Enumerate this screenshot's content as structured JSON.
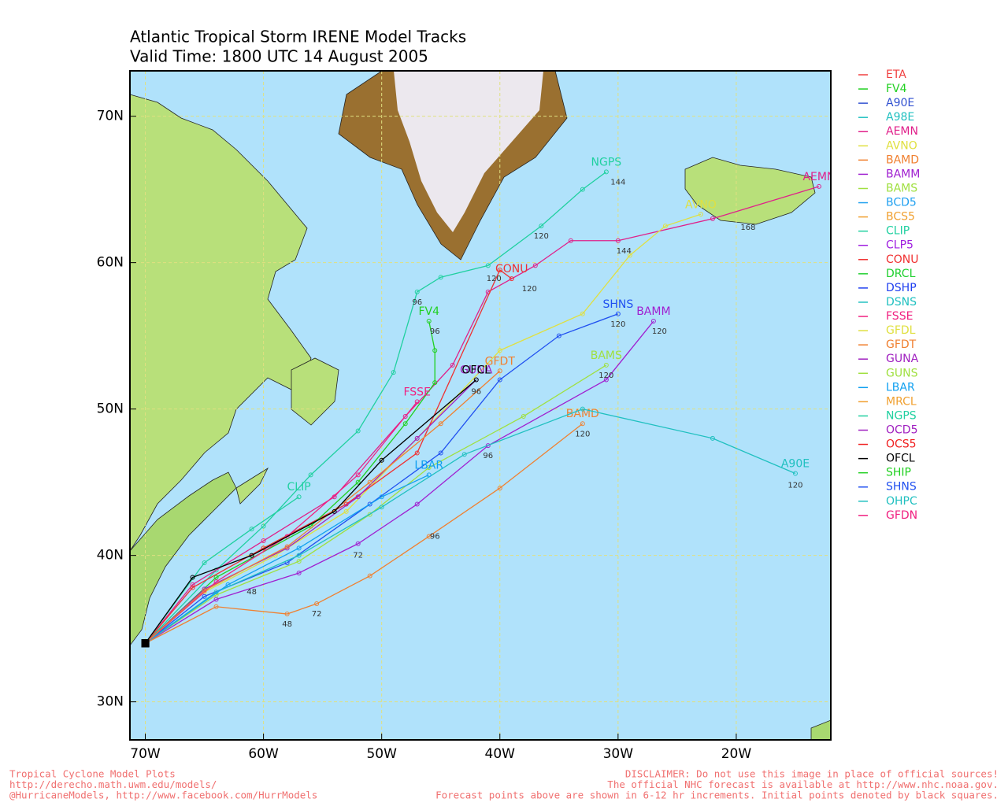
{
  "title": "Atlantic Tropical Storm IRENE Model Tracks",
  "subtitle": "Valid Time: 1800 UTC 14 August 2005",
  "map": {
    "lon_range": [
      -71.3,
      -12
    ],
    "lat_range": [
      27.4,
      73.1
    ]
  },
  "lon_ticks": [
    {
      "value": -70,
      "label": "70W"
    },
    {
      "value": -60,
      "label": "60W"
    },
    {
      "value": -50,
      "label": "50W"
    },
    {
      "value": -40,
      "label": "40W"
    },
    {
      "value": -30,
      "label": "30W"
    },
    {
      "value": -20,
      "label": "20W"
    }
  ],
  "lat_ticks": [
    {
      "value": 30,
      "label": "30N"
    },
    {
      "value": 40,
      "label": "40N"
    },
    {
      "value": 50,
      "label": "50N"
    },
    {
      "value": 60,
      "label": "60N"
    },
    {
      "value": 70,
      "label": "70N"
    }
  ],
  "legend": [
    {
      "name": "ETA",
      "color": "#f04040"
    },
    {
      "name": "FV4",
      "color": "#20d020"
    },
    {
      "name": "A90E",
      "color": "#3050d0"
    },
    {
      "name": "A98E",
      "color": "#20c0c0"
    },
    {
      "name": "AEMN",
      "color": "#e0208a"
    },
    {
      "name": "AVNO",
      "color": "#e0e040"
    },
    {
      "name": "BAMD",
      "color": "#f08030"
    },
    {
      "name": "BAMM",
      "color": "#a020d0"
    },
    {
      "name": "BAMS",
      "color": "#a0e040"
    },
    {
      "name": "BCD5",
      "color": "#20a0f0"
    },
    {
      "name": "BCS5",
      "color": "#f0a030"
    },
    {
      "name": "CLIP",
      "color": "#20d0a0"
    },
    {
      "name": "CLP5",
      "color": "#a020e0"
    },
    {
      "name": "CONU",
      "color": "#f03030"
    },
    {
      "name": "DRCL",
      "color": "#20d030"
    },
    {
      "name": "DSHP",
      "color": "#2040f0"
    },
    {
      "name": "DSNS",
      "color": "#20c0c0"
    },
    {
      "name": "FSSE",
      "color": "#f02080"
    },
    {
      "name": "GFDL",
      "color": "#e0e040"
    },
    {
      "name": "GFDT",
      "color": "#f08030"
    },
    {
      "name": "GUNA",
      "color": "#a020c0"
    },
    {
      "name": "GUNS",
      "color": "#a0e040"
    },
    {
      "name": "LBAR",
      "color": "#10a0f0"
    },
    {
      "name": "MRCL",
      "color": "#f0a030"
    },
    {
      "name": "NGPS",
      "color": "#20d0a0"
    },
    {
      "name": "OCD5",
      "color": "#a020c0"
    },
    {
      "name": "OCS5",
      "color": "#f02020"
    },
    {
      "name": "OFCL",
      "color": "#000000"
    },
    {
      "name": "SHIP",
      "color": "#20d020"
    },
    {
      "name": "SHNS",
      "color": "#2050f0"
    },
    {
      "name": "OHPC",
      "color": "#20c0c0"
    },
    {
      "name": "GFDN",
      "color": "#f02080"
    }
  ],
  "tracks": [
    {
      "name": "NGPS",
      "color": "#20d0a0",
      "lon": [
        -70,
        -64,
        -60,
        -56,
        -52,
        -49,
        -47,
        -45,
        -41,
        -36.5,
        -33,
        -31
      ],
      "lat": [
        34,
        39,
        42,
        45.5,
        48.5,
        52.5,
        58,
        59,
        59.8,
        62.5,
        65,
        66.2
      ]
    },
    {
      "name": "AEMN",
      "color": "#e0208a",
      "lon": [
        -70,
        -66,
        -60,
        -54,
        -48,
        -44,
        -41,
        -37,
        -34,
        -30,
        -22,
        -13
      ],
      "lat": [
        34,
        38,
        41,
        44,
        49.5,
        53,
        58,
        59.8,
        61.5,
        61.5,
        63,
        65.2
      ]
    },
    {
      "name": "AVNO",
      "color": "#e0e040",
      "lon": [
        -70,
        -65,
        -59,
        -53,
        -47,
        -40,
        -33,
        -29,
        -26,
        -23
      ],
      "lat": [
        34,
        37.5,
        40,
        43,
        48,
        54,
        56.5,
        60.5,
        62.5,
        63.3
      ]
    },
    {
      "name": "CONU",
      "color": "#f03030",
      "lon": [
        -70,
        -66,
        -60,
        -53,
        -47,
        -40,
        -39
      ],
      "lat": [
        34,
        37.8,
        40.5,
        43.5,
        47,
        59.5,
        58.9
      ]
    },
    {
      "name": "SHNS",
      "color": "#2050f0",
      "lon": [
        -70,
        -65,
        -58,
        -51,
        -45,
        -40,
        -35,
        -30
      ],
      "lat": [
        34,
        37.2,
        39.5,
        43.5,
        47,
        52,
        55,
        56.5
      ]
    },
    {
      "name": "BAMM",
      "color": "#a020d0",
      "lon": [
        -70,
        -64,
        -57,
        -52,
        -47,
        -41,
        -31,
        -27
      ],
      "lat": [
        34,
        37,
        38.8,
        40.8,
        43.5,
        47.5,
        52,
        56
      ]
    },
    {
      "name": "BAMS",
      "color": "#a0e040",
      "lon": [
        -70,
        -64,
        -57,
        -51,
        -46,
        -38,
        -31
      ],
      "lat": [
        34,
        37.3,
        39.6,
        42.8,
        46,
        49.5,
        53
      ]
    },
    {
      "name": "BAMD",
      "color": "#f08030",
      "lon": [
        -70,
        -64,
        -58,
        -55.5,
        -51,
        -46,
        -40,
        -33
      ],
      "lat": [
        34,
        36.5,
        36,
        36.7,
        38.6,
        41.3,
        44.6,
        49
      ]
    },
    {
      "name": "A90E",
      "color": "#20c0c0",
      "lon": [
        -70,
        -64,
        -57,
        -50,
        -43,
        -33,
        -22,
        -15
      ],
      "lat": [
        34,
        37.5,
        40,
        43.3,
        46.9,
        50,
        48,
        45.6
      ]
    },
    {
      "name": "FV4",
      "color": "#20d020",
      "lon": [
        -70,
        -64,
        -56,
        -52,
        -48,
        -45.5,
        -45.5,
        -46
      ],
      "lat": [
        34,
        38.5,
        42,
        45,
        49,
        51.8,
        54,
        56
      ]
    },
    {
      "name": "LBAR",
      "color": "#10a0f0",
      "lon": [
        -70,
        -63,
        -57,
        -50,
        -46
      ],
      "lat": [
        34,
        38,
        40.5,
        44,
        45.5
      ]
    },
    {
      "name": "GUNA",
      "color": "#a020c0",
      "lon": [
        -70,
        -65,
        -58,
        -52,
        -47,
        -42
      ],
      "lat": [
        34,
        37.7,
        40.5,
        44,
        48,
        52
      ]
    },
    {
      "name": "FSSE",
      "color": "#f02080",
      "lon": [
        -70,
        -64,
        -58,
        -52,
        -47
      ],
      "lat": [
        34,
        38.2,
        41.3,
        45.5,
        50.5
      ]
    },
    {
      "name": "CLIP",
      "color": "#20d0a0",
      "lon": [
        -70,
        -65,
        -61,
        -57
      ],
      "lat": [
        34,
        39.5,
        41.8,
        44
      ]
    },
    {
      "name": "GFDT",
      "color": "#f08030",
      "lon": [
        -70,
        -65,
        -58,
        -51,
        -45,
        -40
      ],
      "lat": [
        34,
        37.6,
        40.6,
        45,
        49,
        52.6
      ]
    },
    {
      "name": "OFCL",
      "color": "#000000",
      "lon": [
        -70,
        -66,
        -61,
        -54,
        -50,
        -42
      ],
      "lat": [
        34,
        38.5,
        40,
        43,
        46.5,
        52
      ]
    }
  ],
  "hour_labels": [
    {
      "text": 144,
      "lon": -30,
      "lat": 65.5
    },
    {
      "text": 120,
      "lon": -36.5,
      "lat": 61.8
    },
    {
      "text": 96,
      "lon": -47,
      "lat": 57.3
    },
    {
      "text": 168,
      "lon": -19,
      "lat": 62.4
    },
    {
      "text": 144,
      "lon": -29.5,
      "lat": 60.8
    },
    {
      "text": 120,
      "lon": -37.5,
      "lat": 58.2
    },
    {
      "text": 120,
      "lon": -40.5,
      "lat": 58.9
    },
    {
      "text": 120,
      "lon": -30,
      "lat": 55.8
    },
    {
      "text": 120,
      "lon": -26.5,
      "lat": 55.3
    },
    {
      "text": 120,
      "lon": -31,
      "lat": 52.3
    },
    {
      "text": 120,
      "lon": -33,
      "lat": 48.3
    },
    {
      "text": 120,
      "lon": -15,
      "lat": 44.8
    },
    {
      "text": 96,
      "lon": -41,
      "lat": 46.8
    },
    {
      "text": 96,
      "lon": -45.5,
      "lat": 41.3
    },
    {
      "text": 72,
      "lon": -55.5,
      "lat": 36
    },
    {
      "text": 48,
      "lon": -58,
      "lat": 35.3
    },
    {
      "text": 96,
      "lon": -45.5,
      "lat": 55.3
    },
    {
      "text": 96,
      "lon": -42,
      "lat": 51.2
    },
    {
      "text": 72,
      "lon": -52,
      "lat": 40
    },
    {
      "text": 48,
      "lon": -61,
      "lat": 37.5
    }
  ],
  "footer": {
    "left": [
      "Tropical Cyclone Model Plots",
      "http://derecho.math.uwm.edu/models/",
      "@HurricaneModels, http://www.facebook.com/HurrModels"
    ],
    "right": [
      "DISCLAIMER: Do not use this image in place of official sources!",
      "The official NHC forecast is available at http://www.nhc.noaa.gov.",
      "Forecast points above are shown in 6-12 hr increments. Initial points denoted by black squares."
    ]
  }
}
